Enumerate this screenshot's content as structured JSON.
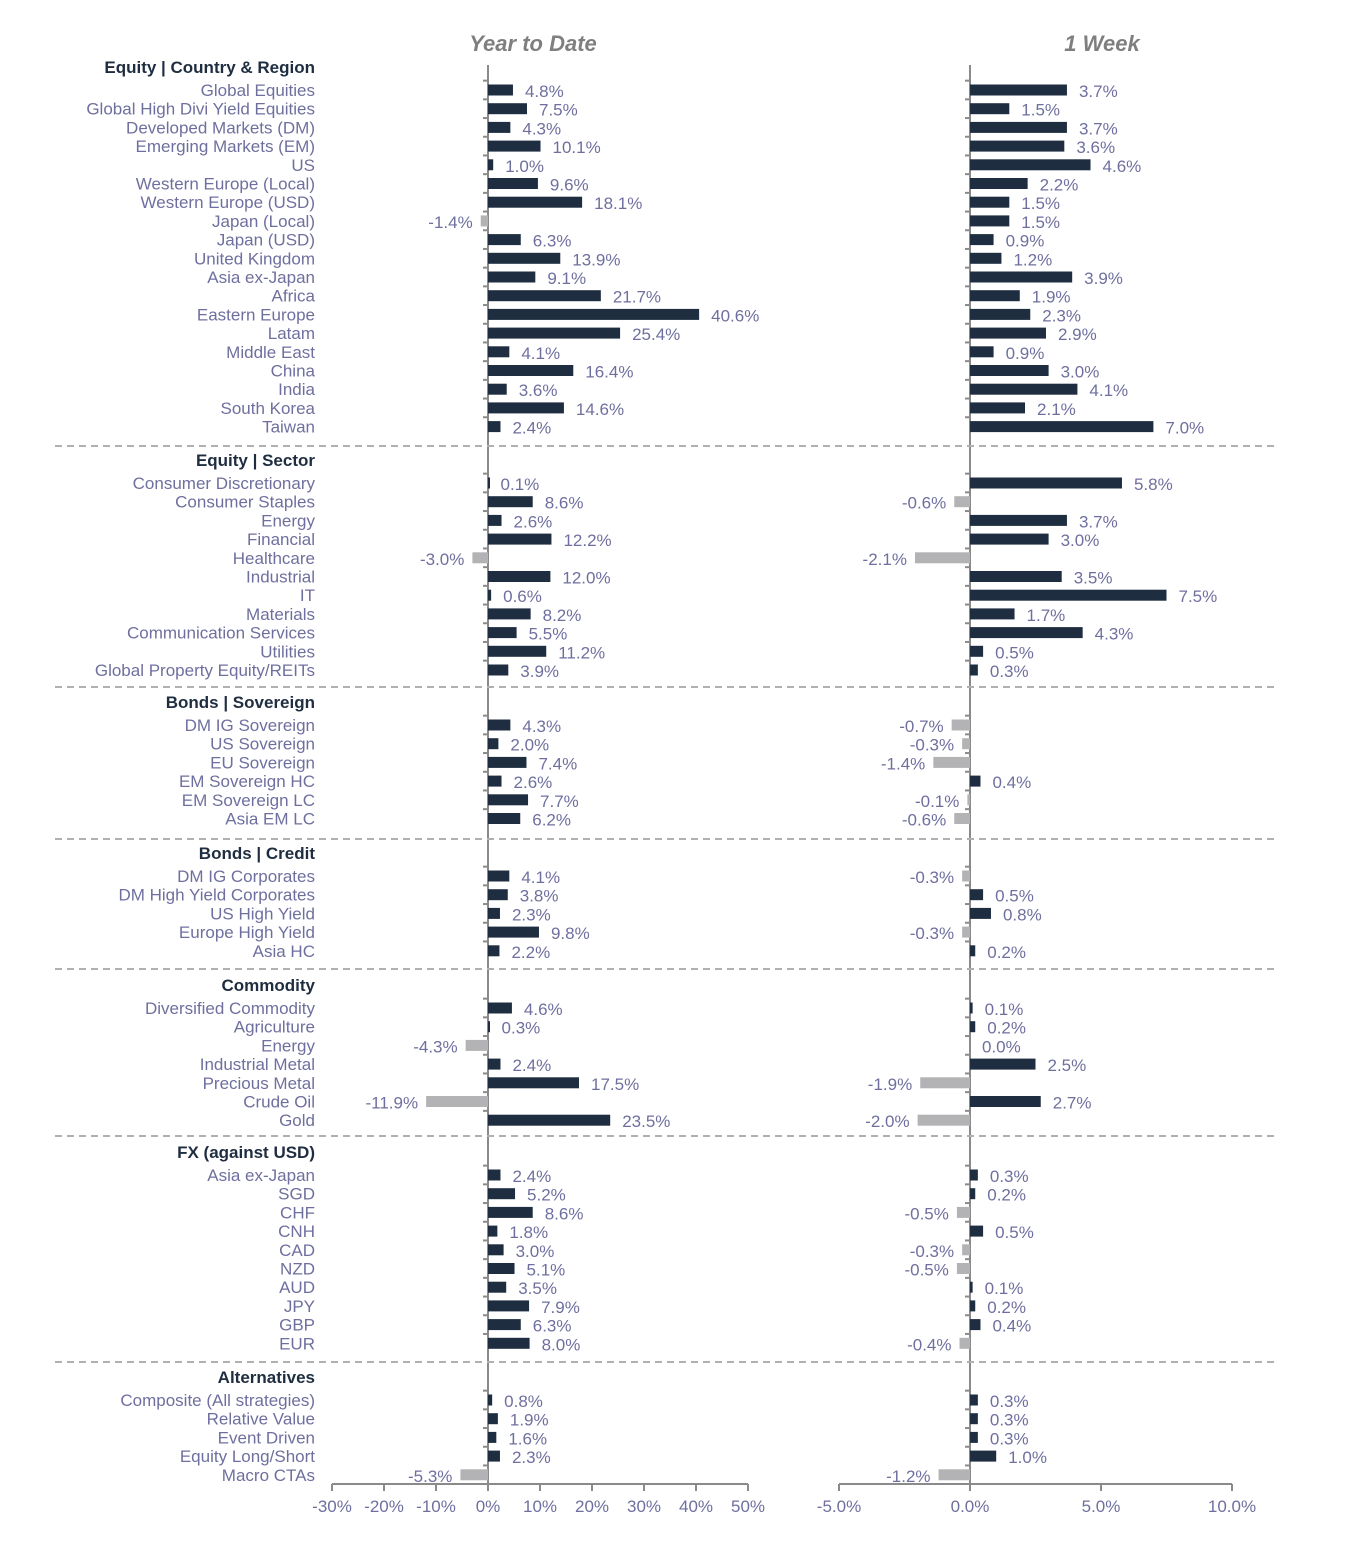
{
  "chart_data": {
    "type": "bar",
    "orientation": "horizontal",
    "panels": [
      {
        "title": "Year to Date",
        "key": "ytd",
        "xlim": [
          -30,
          50
        ],
        "ticks": [
          -30,
          -20,
          -10,
          0,
          10,
          20,
          30,
          40,
          50
        ],
        "tick_labels": [
          "-30%",
          "-20%",
          "-10%",
          "0%",
          "10%",
          "20%",
          "30%",
          "40%",
          "50%"
        ]
      },
      {
        "title": "1 Week",
        "key": "w1",
        "xlim": [
          -5,
          10
        ],
        "ticks": [
          -5,
          0,
          5,
          10
        ],
        "tick_labels": [
          "-5.0%",
          "0.0%",
          "5.0%",
          "10.0%"
        ]
      }
    ],
    "colors": {
      "positive": "#1f2d40",
      "negative": "#b3b3b6"
    },
    "sections": [
      {
        "title": "Equity | Country & Region",
        "items": [
          {
            "label": "Global Equities",
            "ytd": 4.8,
            "w1": 3.7
          },
          {
            "label": "Global High Divi Yield Equities",
            "ytd": 7.5,
            "w1": 1.5
          },
          {
            "label": "Developed Markets (DM)",
            "ytd": 4.3,
            "w1": 3.7
          },
          {
            "label": "Emerging Markets (EM)",
            "ytd": 10.1,
            "w1": 3.6
          },
          {
            "label": "US",
            "ytd": 1.0,
            "w1": 4.6
          },
          {
            "label": "Western Europe (Local)",
            "ytd": 9.6,
            "w1": 2.2
          },
          {
            "label": "Western Europe (USD)",
            "ytd": 18.1,
            "w1": 1.5
          },
          {
            "label": "Japan (Local)",
            "ytd": -1.4,
            "w1": 1.5
          },
          {
            "label": "Japan (USD)",
            "ytd": 6.3,
            "w1": 0.9
          },
          {
            "label": "United Kingdom",
            "ytd": 13.9,
            "w1": 1.2
          },
          {
            "label": "Asia ex-Japan",
            "ytd": 9.1,
            "w1": 3.9
          },
          {
            "label": "Africa",
            "ytd": 21.7,
            "w1": 1.9
          },
          {
            "label": "Eastern Europe",
            "ytd": 40.6,
            "w1": 2.3
          },
          {
            "label": "Latam",
            "ytd": 25.4,
            "w1": 2.9
          },
          {
            "label": "Middle East",
            "ytd": 4.1,
            "w1": 0.9
          },
          {
            "label": "China",
            "ytd": 16.4,
            "w1": 3.0
          },
          {
            "label": "India",
            "ytd": 3.6,
            "w1": 4.1
          },
          {
            "label": "South Korea",
            "ytd": 14.6,
            "w1": 2.1
          },
          {
            "label": "Taiwan",
            "ytd": 2.4,
            "w1": 7.0
          }
        ]
      },
      {
        "title": "Equity | Sector",
        "items": [
          {
            "label": "Consumer Discretionary",
            "ytd": 0.1,
            "w1": 5.8
          },
          {
            "label": "Consumer Staples",
            "ytd": 8.6,
            "w1": -0.6
          },
          {
            "label": "Energy",
            "ytd": 2.6,
            "w1": 3.7
          },
          {
            "label": "Financial",
            "ytd": 12.2,
            "w1": 3.0
          },
          {
            "label": "Healthcare",
            "ytd": -3.0,
            "w1": -2.1
          },
          {
            "label": "Industrial",
            "ytd": 12.0,
            "w1": 3.5
          },
          {
            "label": "IT",
            "ytd": 0.6,
            "w1": 7.5
          },
          {
            "label": "Materials",
            "ytd": 8.2,
            "w1": 1.7
          },
          {
            "label": "Communication Services",
            "ytd": 5.5,
            "w1": 4.3
          },
          {
            "label": "Utilities",
            "ytd": 11.2,
            "w1": 0.5
          },
          {
            "label": "Global Property Equity/REITs",
            "ytd": 3.9,
            "w1": 0.3
          }
        ]
      },
      {
        "title": "Bonds | Sovereign",
        "items": [
          {
            "label": "DM IG Sovereign",
            "ytd": 4.3,
            "w1": -0.7
          },
          {
            "label": "US Sovereign",
            "ytd": 2.0,
            "w1": -0.3
          },
          {
            "label": "EU Sovereign",
            "ytd": 7.4,
            "w1": -1.4
          },
          {
            "label": "EM Sovereign HC",
            "ytd": 2.6,
            "w1": 0.4
          },
          {
            "label": "EM Sovereign LC",
            "ytd": 7.7,
            "w1": -0.1
          },
          {
            "label": "Asia EM LC",
            "ytd": 6.2,
            "w1": -0.6
          }
        ]
      },
      {
        "title": "Bonds | Credit",
        "items": [
          {
            "label": "DM IG Corporates",
            "ytd": 4.1,
            "w1": -0.3
          },
          {
            "label": "DM High Yield Corporates",
            "ytd": 3.8,
            "w1": 0.5
          },
          {
            "label": "US High Yield",
            "ytd": 2.3,
            "w1": 0.8
          },
          {
            "label": "Europe High Yield",
            "ytd": 9.8,
            "w1": -0.3
          },
          {
            "label": "Asia HC",
            "ytd": 2.2,
            "w1": 0.2
          }
        ]
      },
      {
        "title": "Commodity",
        "items": [
          {
            "label": "Diversified Commodity",
            "ytd": 4.6,
            "w1": 0.1
          },
          {
            "label": "Agriculture",
            "ytd": 0.3,
            "w1": 0.2
          },
          {
            "label": "Energy",
            "ytd": -4.3,
            "w1": 0.0
          },
          {
            "label": "Industrial Metal",
            "ytd": 2.4,
            "w1": 2.5
          },
          {
            "label": "Precious Metal",
            "ytd": 17.5,
            "w1": -1.9
          },
          {
            "label": "Crude Oil",
            "ytd": -11.9,
            "w1": 2.7
          },
          {
            "label": "Gold",
            "ytd": 23.5,
            "w1": -2.0
          }
        ]
      },
      {
        "title": "FX (against USD)",
        "items": [
          {
            "label": "Asia ex-Japan",
            "ytd": 2.4,
            "w1": 0.3
          },
          {
            "label": "SGD",
            "ytd": 5.2,
            "w1": 0.2
          },
          {
            "label": "CHF",
            "ytd": 8.6,
            "w1": -0.5
          },
          {
            "label": "CNH",
            "ytd": 1.8,
            "w1": 0.5
          },
          {
            "label": "CAD",
            "ytd": 3.0,
            "w1": -0.3
          },
          {
            "label": "NZD",
            "ytd": 5.1,
            "w1": -0.5
          },
          {
            "label": "AUD",
            "ytd": 3.5,
            "w1": 0.1
          },
          {
            "label": "JPY",
            "ytd": 7.9,
            "w1": 0.2
          },
          {
            "label": "GBP",
            "ytd": 6.3,
            "w1": 0.4
          },
          {
            "label": "EUR",
            "ytd": 8.0,
            "w1": -0.4
          }
        ]
      },
      {
        "title": "Alternatives",
        "items": [
          {
            "label": "Composite (All strategies)",
            "ytd": 0.8,
            "w1": 0.3
          },
          {
            "label": "Relative Value",
            "ytd": 1.9,
            "w1": 0.3
          },
          {
            "label": "Event Driven",
            "ytd": 1.6,
            "w1": 0.3
          },
          {
            "label": "Equity Long/Short",
            "ytd": 2.3,
            "w1": 1.0
          },
          {
            "label": "Macro CTAs",
            "ytd": -5.3,
            "w1": -1.2
          }
        ]
      }
    ]
  }
}
